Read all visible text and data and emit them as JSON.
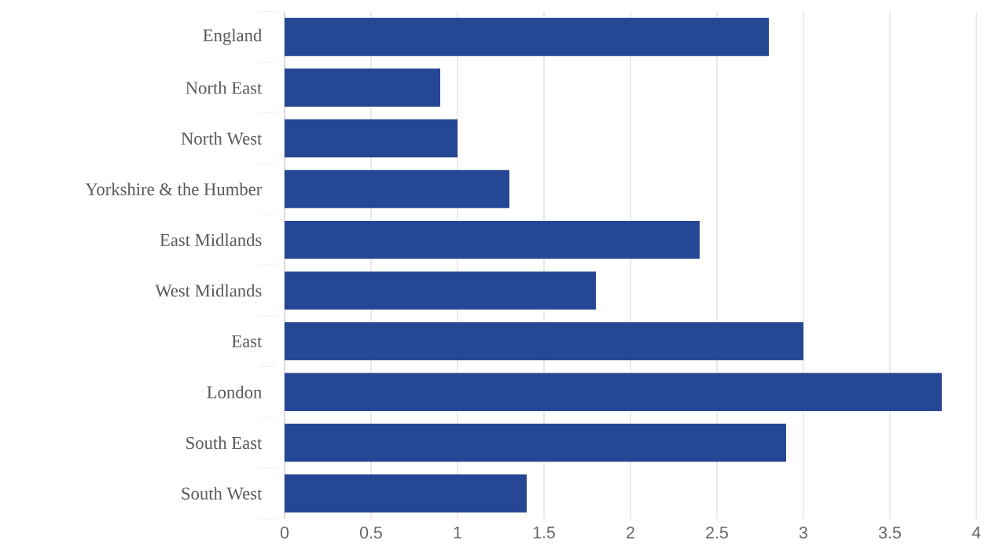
{
  "chart_data": {
    "type": "bar",
    "orientation": "horizontal",
    "categories": [
      "England",
      "North East",
      "North West",
      "Yorkshire & the Humber",
      "East Midlands",
      "West Midlands",
      "East",
      "London",
      "South East",
      "South West"
    ],
    "values": [
      2.8,
      0.9,
      1.0,
      1.3,
      2.4,
      1.8,
      3.0,
      3.8,
      2.9,
      1.4
    ],
    "color": "#264794",
    "xlim": [
      0,
      4
    ],
    "xticks": [
      0,
      0.5,
      1,
      1.5,
      2,
      2.5,
      3,
      3.5,
      4
    ],
    "grid": "x"
  }
}
